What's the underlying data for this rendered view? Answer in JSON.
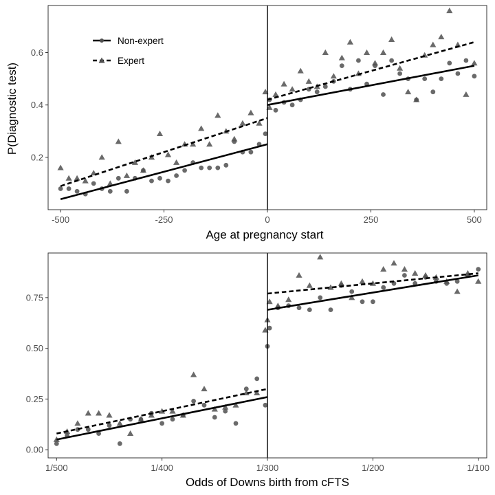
{
  "colors": {
    "points": "#505050",
    "lines": "#000000",
    "panel_border": "#333333",
    "background": "#ffffff"
  },
  "legend": {
    "entries": [
      {
        "label": "Non-expert",
        "linestyle": "solid",
        "marker": "circle"
      },
      {
        "label": "Expert",
        "linestyle": "dashed",
        "marker": "triangle"
      }
    ],
    "placement": "top-left"
  },
  "chart_data": [
    {
      "type": "scatter",
      "xlabel": "Age at pregnancy start",
      "ylabel": "P(Diagnostic test)",
      "xlim": [
        -530,
        530
      ],
      "ylim": [
        0.0,
        0.78
      ],
      "xticks": [
        -500,
        -250,
        0,
        250,
        500
      ],
      "xtick_labels": [
        "-500",
        "-250",
        "0",
        "250",
        "500"
      ],
      "yticks": [
        0.2,
        0.4,
        0.6
      ],
      "ytick_labels": [
        "0.2",
        "0.4",
        "0.6"
      ],
      "cutoff": 0,
      "grid": false,
      "legend": true,
      "series": [
        {
          "name": "Non-expert",
          "marker": "circle",
          "x": [
            -500,
            -480,
            -460,
            -440,
            -420,
            -400,
            -380,
            -360,
            -340,
            -320,
            -300,
            -280,
            -260,
            -240,
            -220,
            -200,
            -180,
            -160,
            -140,
            -120,
            -100,
            -80,
            -60,
            -40,
            -20,
            -5,
            5,
            20,
            40,
            60,
            80,
            100,
            120,
            140,
            160,
            180,
            200,
            220,
            240,
            260,
            280,
            300,
            320,
            340,
            360,
            380,
            400,
            420,
            440,
            460,
            480,
            500
          ],
          "y": [
            0.08,
            0.08,
            0.07,
            0.06,
            0.1,
            0.08,
            0.07,
            0.12,
            0.07,
            0.12,
            0.15,
            0.11,
            0.12,
            0.11,
            0.13,
            0.15,
            0.18,
            0.16,
            0.16,
            0.16,
            0.17,
            0.26,
            0.22,
            0.22,
            0.25,
            0.29,
            0.42,
            0.38,
            0.41,
            0.4,
            0.42,
            0.46,
            0.45,
            0.47,
            0.49,
            0.55,
            0.46,
            0.57,
            0.48,
            0.55,
            0.44,
            0.57,
            0.52,
            0.5,
            0.42,
            0.5,
            0.45,
            0.5,
            0.56,
            0.52,
            0.57,
            0.51
          ],
          "fit": [
            [
              -500,
              0.04
            ],
            [
              0,
              0.25
            ],
            [
              0,
              0.4
            ],
            [
              500,
              0.55
            ]
          ]
        },
        {
          "name": "Expert",
          "marker": "triangle",
          "x": [
            -500,
            -480,
            -460,
            -440,
            -420,
            -400,
            -380,
            -360,
            -340,
            -320,
            -300,
            -280,
            -260,
            -240,
            -220,
            -200,
            -180,
            -160,
            -140,
            -120,
            -100,
            -80,
            -60,
            -40,
            -20,
            -5,
            5,
            20,
            40,
            60,
            80,
            100,
            120,
            140,
            160,
            180,
            200,
            220,
            240,
            260,
            280,
            300,
            320,
            340,
            360,
            380,
            400,
            420,
            440,
            460,
            480,
            500
          ],
          "y": [
            0.16,
            0.12,
            0.12,
            0.11,
            0.14,
            0.2,
            0.1,
            0.26,
            0.13,
            0.18,
            0.15,
            0.2,
            0.29,
            0.21,
            0.18,
            0.25,
            0.25,
            0.31,
            0.25,
            0.36,
            0.3,
            0.27,
            0.33,
            0.37,
            0.33,
            0.45,
            0.39,
            0.44,
            0.48,
            0.46,
            0.53,
            0.49,
            0.47,
            0.6,
            0.51,
            0.58,
            0.64,
            0.52,
            0.6,
            0.56,
            0.6,
            0.65,
            0.54,
            0.45,
            0.42,
            0.59,
            0.63,
            0.66,
            0.76,
            0.63,
            0.44,
            0.56
          ],
          "fit": [
            [
              -500,
              0.09
            ],
            [
              0,
              0.35
            ],
            [
              0,
              0.42
            ],
            [
              500,
              0.64
            ]
          ]
        }
      ]
    },
    {
      "type": "scatter",
      "xlabel": "Odds of Downs birth from cFTS",
      "ylabel": "",
      "xlim": [
        -0.08,
        4.08
      ],
      "ylim": [
        -0.04,
        0.97
      ],
      "xticks": [
        0,
        1,
        2,
        3,
        4
      ],
      "xtick_labels": [
        "1/500",
        "1/400",
        "1/300",
        "1/200",
        "1/100"
      ],
      "yticks": [
        0.0,
        0.25,
        0.5,
        0.75
      ],
      "ytick_labels": [
        "0.00",
        "0.25",
        "0.50",
        "0.75"
      ],
      "cutoff": 2,
      "grid": false,
      "legend": false,
      "series": [
        {
          "name": "Non-expert",
          "marker": "circle",
          "x": [
            0,
            0.1,
            0.2,
            0.3,
            0.4,
            0.5,
            0.6,
            0.7,
            0.8,
            0.9,
            1.0,
            1.1,
            1.2,
            1.3,
            1.4,
            1.5,
            1.6,
            1.7,
            1.8,
            1.9,
            1.98,
            2.0,
            2.02,
            2.1,
            2.2,
            2.3,
            2.4,
            2.5,
            2.6,
            2.7,
            2.8,
            2.9,
            3.0,
            3.1,
            3.2,
            3.3,
            3.4,
            3.5,
            3.6,
            3.7,
            3.8,
            3.9,
            4.0
          ],
          "y": [
            0.03,
            0.07,
            0.1,
            0.1,
            0.08,
            0.12,
            0.03,
            0.15,
            0.15,
            0.18,
            0.13,
            0.15,
            0.17,
            0.24,
            0.22,
            0.16,
            0.19,
            0.13,
            0.3,
            0.35,
            0.22,
            0.51,
            0.6,
            0.7,
            0.71,
            0.7,
            0.69,
            0.75,
            0.69,
            0.81,
            0.78,
            0.73,
            0.73,
            0.8,
            0.82,
            0.86,
            0.82,
            0.85,
            0.83,
            0.82,
            0.83,
            0.86,
            0.89
          ],
          "fit": [
            [
              0,
              0.05
            ],
            [
              2,
              0.26
            ],
            [
              2,
              0.69
            ],
            [
              4,
              0.86
            ]
          ]
        },
        {
          "name": "Expert",
          "marker": "triangle",
          "x": [
            0,
            0.1,
            0.2,
            0.3,
            0.4,
            0.5,
            0.6,
            0.7,
            0.8,
            0.9,
            1.0,
            1.1,
            1.2,
            1.3,
            1.4,
            1.5,
            1.6,
            1.7,
            1.8,
            1.9,
            1.98,
            2.0,
            2.02,
            2.1,
            2.2,
            2.3,
            2.4,
            2.5,
            2.6,
            2.7,
            2.8,
            2.9,
            3.0,
            3.1,
            3.2,
            3.3,
            3.4,
            3.5,
            3.6,
            3.7,
            3.8,
            3.9,
            4.0
          ],
          "y": [
            0.05,
            0.09,
            0.13,
            0.18,
            0.18,
            0.17,
            0.13,
            0.08,
            0.15,
            0.17,
            0.19,
            0.19,
            0.17,
            0.37,
            0.3,
            0.2,
            0.21,
            0.22,
            0.28,
            0.28,
            0.59,
            0.64,
            0.73,
            0.71,
            0.74,
            0.86,
            0.81,
            0.95,
            0.8,
            0.82,
            0.75,
            0.83,
            0.82,
            0.89,
            0.92,
            0.89,
            0.87,
            0.86,
            0.85,
            0.83,
            0.78,
            0.87,
            0.83
          ],
          "fit": [
            [
              0,
              0.08
            ],
            [
              2,
              0.3
            ],
            [
              2,
              0.77
            ],
            [
              4,
              0.87
            ]
          ]
        }
      ]
    }
  ]
}
